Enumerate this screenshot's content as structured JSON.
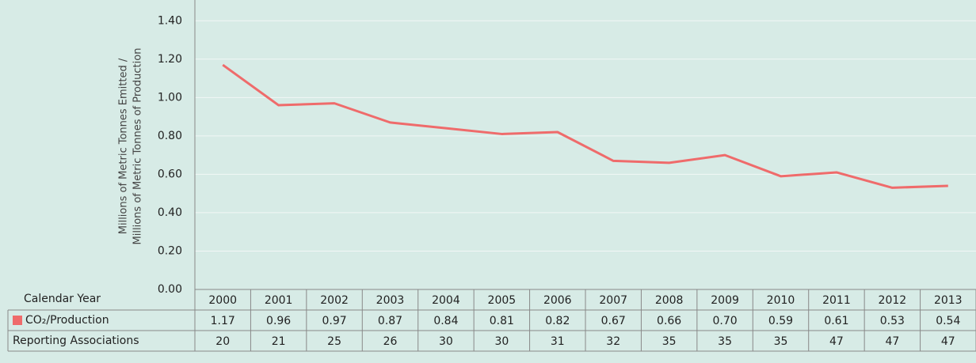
{
  "chart_data": {
    "type": "line",
    "y_axis_label": [
      "Millions of Metric Tonnes Emitted /",
      "Millions of Metric Tonnes of Production"
    ],
    "x_axis_label": "Calendar Year",
    "categories": [
      "2000",
      "2001",
      "2002",
      "2003",
      "2004",
      "2005",
      "2006",
      "2007",
      "2008",
      "2009",
      "2010",
      "2011",
      "2012",
      "2013"
    ],
    "series": [
      {
        "name": "CO₂/Production",
        "color": "#ef6b6b",
        "values": [
          1.17,
          0.96,
          0.97,
          0.87,
          0.84,
          0.81,
          0.82,
          0.67,
          0.66,
          0.7,
          0.59,
          0.61,
          0.53,
          0.54
        ],
        "value_labels": [
          "1.17",
          "0.96",
          "0.97",
          "0.87",
          "0.84",
          "0.81",
          "0.82",
          "0.67",
          "0.66",
          "0.70",
          "0.59",
          "0.61",
          "0.53",
          "0.54"
        ]
      }
    ],
    "reporting": {
      "name": "Reporting Associations",
      "values": [
        20,
        21,
        25,
        26,
        30,
        30,
        31,
        32,
        35,
        35,
        35,
        47,
        47,
        47
      ]
    },
    "ylim": [
      0,
      1.5
    ],
    "yticks": [
      {
        "value": 0,
        "label": "0.00"
      },
      {
        "value": 0.2,
        "label": "0.20"
      },
      {
        "value": 0.4,
        "label": "0.40"
      },
      {
        "value": 0.6,
        "label": "0.60"
      },
      {
        "value": 0.8,
        "label": "0.80"
      },
      {
        "value": 1.0,
        "label": "1.00"
      },
      {
        "value": 1.2,
        "label": "1.20"
      },
      {
        "value": 1.4,
        "label": "1.40"
      }
    ],
    "grid": true
  }
}
